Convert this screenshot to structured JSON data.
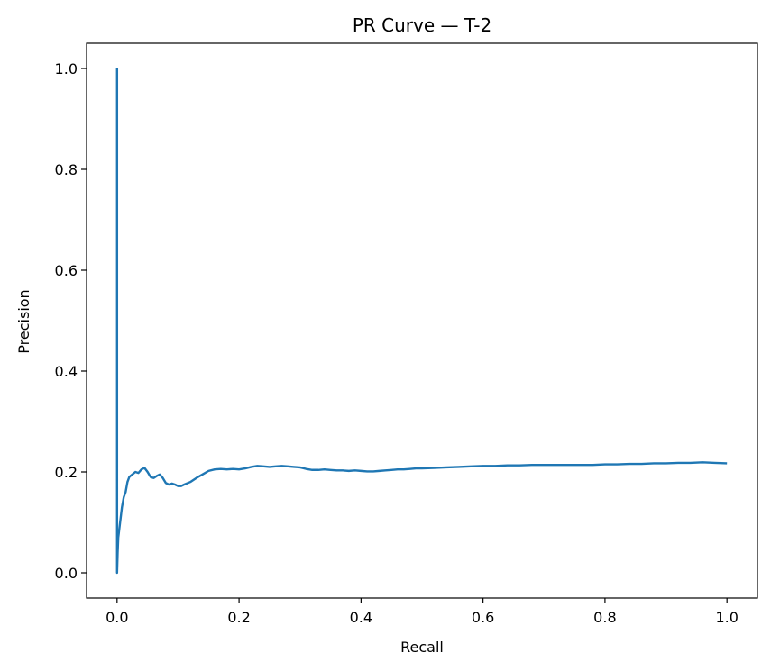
{
  "chart_data": {
    "type": "line",
    "title": "PR Curve — T-2",
    "xlabel": "Recall",
    "ylabel": "Precision",
    "xlim": [
      -0.05,
      1.05
    ],
    "ylim": [
      -0.05,
      1.05
    ],
    "xticks": [
      0.0,
      0.2,
      0.4,
      0.6,
      0.8,
      1.0
    ],
    "xtick_labels": [
      "0.0",
      "0.2",
      "0.4",
      "0.6",
      "0.8",
      "1.0"
    ],
    "yticks": [
      0.0,
      0.2,
      0.4,
      0.6,
      0.8,
      1.0
    ],
    "ytick_labels": [
      "0.0",
      "0.2",
      "0.4",
      "0.6",
      "0.8",
      "1.0"
    ],
    "grid": false,
    "legend": "none",
    "series": [
      {
        "color": "#1f77b4",
        "points": [
          [
            0.0,
            1.0
          ],
          [
            0.0,
            0.0
          ],
          [
            0.001,
            0.04
          ],
          [
            0.002,
            0.07
          ],
          [
            0.004,
            0.09
          ],
          [
            0.006,
            0.11
          ],
          [
            0.008,
            0.13
          ],
          [
            0.011,
            0.15
          ],
          [
            0.014,
            0.16
          ],
          [
            0.017,
            0.18
          ],
          [
            0.02,
            0.19
          ],
          [
            0.025,
            0.195
          ],
          [
            0.03,
            0.2
          ],
          [
            0.035,
            0.198
          ],
          [
            0.04,
            0.205
          ],
          [
            0.045,
            0.208
          ],
          [
            0.05,
            0.2
          ],
          [
            0.055,
            0.19
          ],
          [
            0.06,
            0.188
          ],
          [
            0.065,
            0.192
          ],
          [
            0.07,
            0.195
          ],
          [
            0.075,
            0.188
          ],
          [
            0.08,
            0.178
          ],
          [
            0.085,
            0.175
          ],
          [
            0.09,
            0.177
          ],
          [
            0.095,
            0.175
          ],
          [
            0.1,
            0.172
          ],
          [
            0.105,
            0.172
          ],
          [
            0.11,
            0.175
          ],
          [
            0.12,
            0.18
          ],
          [
            0.13,
            0.188
          ],
          [
            0.14,
            0.195
          ],
          [
            0.15,
            0.202
          ],
          [
            0.16,
            0.205
          ],
          [
            0.17,
            0.206
          ],
          [
            0.18,
            0.205
          ],
          [
            0.19,
            0.206
          ],
          [
            0.2,
            0.205
          ],
          [
            0.21,
            0.207
          ],
          [
            0.22,
            0.21
          ],
          [
            0.23,
            0.212
          ],
          [
            0.24,
            0.211
          ],
          [
            0.25,
            0.21
          ],
          [
            0.26,
            0.211
          ],
          [
            0.27,
            0.212
          ],
          [
            0.28,
            0.211
          ],
          [
            0.29,
            0.21
          ],
          [
            0.3,
            0.209
          ],
          [
            0.31,
            0.206
          ],
          [
            0.32,
            0.204
          ],
          [
            0.33,
            0.204
          ],
          [
            0.34,
            0.205
          ],
          [
            0.35,
            0.204
          ],
          [
            0.36,
            0.203
          ],
          [
            0.37,
            0.203
          ],
          [
            0.38,
            0.202
          ],
          [
            0.39,
            0.203
          ],
          [
            0.4,
            0.202
          ],
          [
            0.41,
            0.201
          ],
          [
            0.42,
            0.201
          ],
          [
            0.43,
            0.202
          ],
          [
            0.44,
            0.203
          ],
          [
            0.45,
            0.204
          ],
          [
            0.46,
            0.205
          ],
          [
            0.47,
            0.205
          ],
          [
            0.48,
            0.206
          ],
          [
            0.49,
            0.207
          ],
          [
            0.5,
            0.207
          ],
          [
            0.52,
            0.208
          ],
          [
            0.54,
            0.209
          ],
          [
            0.56,
            0.21
          ],
          [
            0.58,
            0.211
          ],
          [
            0.6,
            0.212
          ],
          [
            0.62,
            0.212
          ],
          [
            0.64,
            0.213
          ],
          [
            0.66,
            0.213
          ],
          [
            0.68,
            0.214
          ],
          [
            0.7,
            0.214
          ],
          [
            0.72,
            0.214
          ],
          [
            0.74,
            0.214
          ],
          [
            0.76,
            0.214
          ],
          [
            0.78,
            0.214
          ],
          [
            0.8,
            0.215
          ],
          [
            0.82,
            0.215
          ],
          [
            0.84,
            0.216
          ],
          [
            0.86,
            0.216
          ],
          [
            0.88,
            0.217
          ],
          [
            0.9,
            0.217
          ],
          [
            0.92,
            0.218
          ],
          [
            0.94,
            0.218
          ],
          [
            0.96,
            0.219
          ],
          [
            0.98,
            0.218
          ],
          [
            1.0,
            0.217
          ]
        ]
      }
    ]
  }
}
